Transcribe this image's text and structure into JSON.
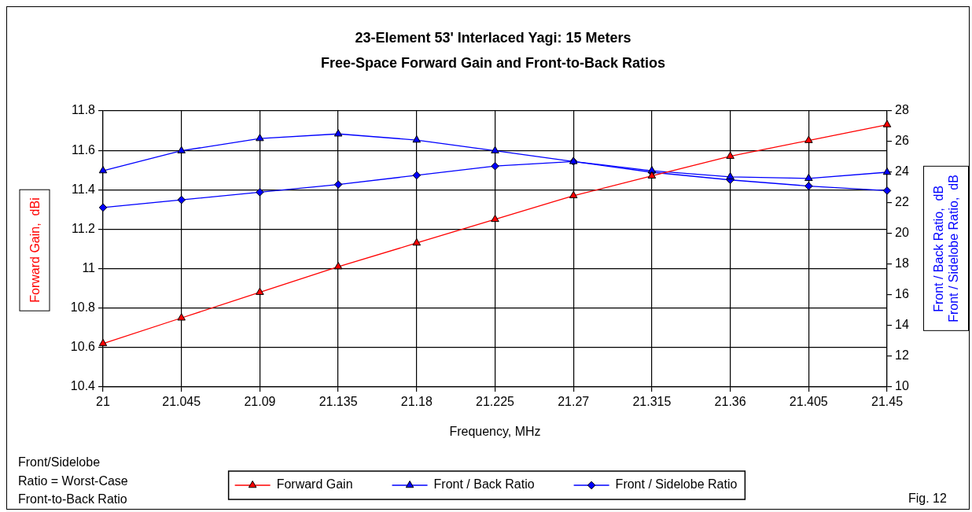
{
  "chart_data": {
    "type": "line",
    "title": "23-Element 53' Interlaced Yagi: 15 Meters",
    "subtitle": "Free-Space Forward Gain and Front-to-Back Ratios",
    "xlabel": "Frequency, MHz",
    "ylabel": "Forward Gain,  dBi",
    "y2label": "Front / Back Ratio,  dB\nFront / Sidelobe Ratio,  dB",
    "categories": [
      "21",
      "21.045",
      "21.09",
      "21.135",
      "21.18",
      "21.225",
      "21.27",
      "21.315",
      "21.36",
      "21.405",
      "21.45"
    ],
    "series": [
      {
        "name": "Forward Gain",
        "color": "#ff0000",
        "marker": "triangle",
        "values": [
          10.62,
          10.75,
          10.88,
          11.01,
          11.13,
          11.25,
          11.37,
          11.47,
          11.57,
          11.65,
          11.73
        ]
      },
      {
        "name": "Front / Back Ratio",
        "color": "#0000ff",
        "axis": "y2",
        "marker": "triangle",
        "values": [
          24.1,
          25.4,
          26.2,
          26.5,
          26.1,
          25.4,
          24.7,
          24.1,
          23.7,
          23.6,
          24.0
        ]
      },
      {
        "name": "Front / Sidelobe Ratio",
        "color": "#0000ff",
        "axis": "y2",
        "marker": "diamond",
        "values": [
          21.7,
          22.2,
          22.7,
          23.2,
          23.8,
          24.4,
          24.7,
          24.0,
          23.5,
          23.1,
          22.8
        ]
      }
    ],
    "ylim": [
      10.4,
      11.8
    ],
    "yticks": [
      10.4,
      10.6,
      10.8,
      11,
      11.2,
      11.4,
      11.6,
      11.8
    ],
    "y2lim": [
      10,
      28
    ],
    "y2ticks": [
      10,
      12,
      14,
      16,
      18,
      20,
      22,
      24,
      26,
      28
    ],
    "grid": true,
    "legend": "bottom",
    "line_style": "solid",
    "annotations": [
      "Front/Sidelobe\nRatio = Worst-Case\nFront-to-Back Ratio",
      "Fig. 12"
    ]
  }
}
